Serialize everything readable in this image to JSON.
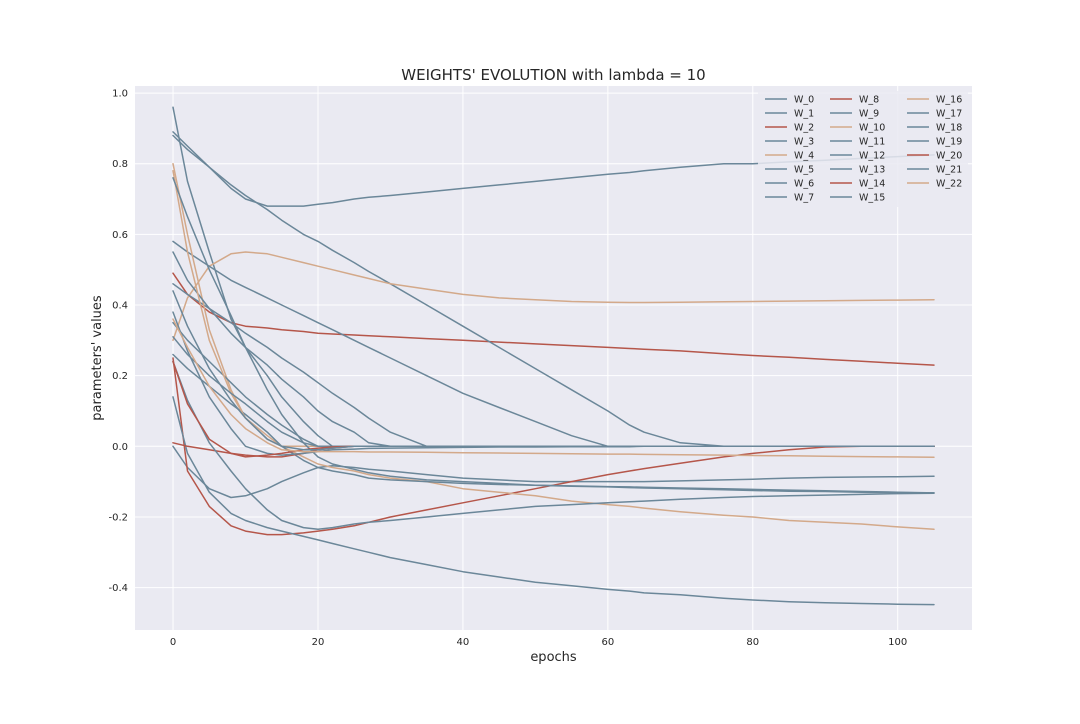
{
  "chart_data": {
    "type": "line",
    "title": "WEIGHTS' EVOLUTION with lambda = 10",
    "xlabel": "epochs",
    "ylabel": "parameters' values",
    "xlim": [
      -5.25,
      110.25
    ],
    "ylim": [
      -0.52,
      1.02
    ],
    "xticks": [
      0,
      20,
      40,
      60,
      80,
      100
    ],
    "xtick_labels": [
      "0",
      "20",
      "40",
      "60",
      "80",
      "100"
    ],
    "yticks": [
      -0.4,
      -0.2,
      0.0,
      0.2,
      0.4,
      0.6,
      0.8,
      1.0
    ],
    "ytick_labels": [
      "-0.4",
      "-0.2",
      "0.0",
      "0.2",
      "0.4",
      "0.6",
      "0.8",
      "1.0"
    ],
    "grid": true,
    "background": "#eaeaf2",
    "legend": {
      "position": "top-right",
      "columns": 3
    },
    "x": [
      0,
      2,
      5,
      8,
      10,
      13,
      15,
      18,
      20,
      22,
      25,
      27,
      30,
      35,
      40,
      45,
      50,
      55,
      60,
      63,
      65,
      70,
      76,
      80,
      85,
      90,
      95,
      100,
      105
    ],
    "series": [
      {
        "name": "W_0",
        "color": "#6b8799",
        "values": [
          0.96,
          0.75,
          0.55,
          0.36,
          0.28,
          0.2,
          0.14,
          0.07,
          0.03,
          0.0,
          0.0,
          0.0,
          0.0,
          0.0,
          0.0,
          0.0,
          0.0,
          0.0,
          0.0,
          0.0,
          0.0,
          0.0,
          0.0,
          0.0,
          0.0,
          0.0,
          0.0,
          0.0,
          0.0
        ]
      },
      {
        "name": "W_1",
        "color": "#6b8799",
        "values": [
          0.89,
          0.85,
          0.79,
          0.73,
          0.7,
          0.68,
          0.68,
          0.68,
          0.685,
          0.69,
          0.7,
          0.705,
          0.71,
          0.72,
          0.73,
          0.74,
          0.75,
          0.76,
          0.77,
          0.775,
          0.78,
          0.79,
          0.8,
          0.8,
          0.805,
          0.81,
          0.815,
          0.82,
          0.825
        ]
      },
      {
        "name": "W_2",
        "color": "#b5564a",
        "values": [
          0.49,
          0.43,
          0.38,
          0.35,
          0.34,
          0.335,
          0.33,
          0.325,
          0.32,
          0.318,
          0.315,
          0.313,
          0.31,
          0.305,
          0.3,
          0.295,
          0.29,
          0.285,
          0.28,
          0.277,
          0.275,
          0.27,
          0.262,
          0.257,
          0.252,
          0.246,
          0.241,
          0.235,
          0.23
        ]
      },
      {
        "name": "W_3",
        "color": "#6b8799",
        "values": [
          0.88,
          0.84,
          0.79,
          0.74,
          0.71,
          0.67,
          0.64,
          0.6,
          0.58,
          0.555,
          0.52,
          0.495,
          0.46,
          0.4,
          0.34,
          0.28,
          0.22,
          0.16,
          0.1,
          0.06,
          0.04,
          0.01,
          0.0,
          0.0,
          0.0,
          0.0,
          0.0,
          0.0,
          0.0
        ]
      },
      {
        "name": "W_4",
        "color": "#d3a98a",
        "values": [
          0.3,
          0.42,
          0.51,
          0.545,
          0.55,
          0.545,
          0.535,
          0.52,
          0.51,
          0.5,
          0.485,
          0.475,
          0.46,
          0.445,
          0.43,
          0.42,
          0.415,
          0.41,
          0.408,
          0.407,
          0.407,
          0.408,
          0.409,
          0.41,
          0.411,
          0.412,
          0.413,
          0.414,
          0.415
        ]
      },
      {
        "name": "W_5",
        "color": "#6b8799",
        "values": [
          0.0,
          -0.06,
          -0.12,
          -0.145,
          -0.14,
          -0.12,
          -0.1,
          -0.075,
          -0.06,
          -0.055,
          -0.06,
          -0.065,
          -0.07,
          -0.08,
          -0.09,
          -0.095,
          -0.1,
          -0.1,
          -0.1,
          -0.1,
          -0.1,
          -0.098,
          -0.095,
          -0.093,
          -0.09,
          -0.088,
          -0.087,
          -0.086,
          -0.085
        ]
      },
      {
        "name": "W_6",
        "color": "#6b8799",
        "values": [
          0.58,
          0.55,
          0.51,
          0.47,
          0.45,
          0.42,
          0.4,
          0.37,
          0.35,
          0.33,
          0.3,
          0.28,
          0.25,
          0.2,
          0.15,
          0.11,
          0.07,
          0.03,
          0.0,
          0.0,
          0.0,
          0.0,
          0.0,
          0.0,
          0.0,
          0.0,
          0.0,
          0.0,
          0.0
        ]
      },
      {
        "name": "W_7",
        "color": "#6b8799",
        "values": [
          0.46,
          0.43,
          0.39,
          0.35,
          0.32,
          0.28,
          0.25,
          0.21,
          0.18,
          0.15,
          0.11,
          0.08,
          0.04,
          0.0,
          0.0,
          0.0,
          0.0,
          0.0,
          0.0,
          0.0,
          0.0,
          0.0,
          0.0,
          0.0,
          0.0,
          0.0,
          0.0,
          0.0,
          0.0
        ]
      },
      {
        "name": "W_8",
        "color": "#b5564a",
        "values": [
          0.25,
          -0.07,
          -0.17,
          -0.225,
          -0.24,
          -0.25,
          -0.25,
          -0.245,
          -0.24,
          -0.235,
          -0.225,
          -0.215,
          -0.2,
          -0.18,
          -0.16,
          -0.14,
          -0.12,
          -0.1,
          -0.08,
          -0.07,
          -0.063,
          -0.048,
          -0.03,
          -0.02,
          -0.01,
          -0.002,
          0.0,
          0.0,
          0.0
        ]
      },
      {
        "name": "W_9",
        "color": "#6b8799",
        "values": [
          0.14,
          -0.02,
          -0.13,
          -0.19,
          -0.21,
          -0.23,
          -0.24,
          -0.255,
          -0.265,
          -0.275,
          -0.29,
          -0.3,
          -0.315,
          -0.335,
          -0.355,
          -0.37,
          -0.385,
          -0.395,
          -0.405,
          -0.41,
          -0.415,
          -0.42,
          -0.43,
          -0.435,
          -0.44,
          -0.443,
          -0.445,
          -0.447,
          -0.448
        ]
      },
      {
        "name": "W_10",
        "color": "#d3a98a",
        "values": [
          0.8,
          0.6,
          0.33,
          0.16,
          0.08,
          0.03,
          0.0,
          -0.03,
          -0.05,
          -0.06,
          -0.07,
          -0.08,
          -0.09,
          -0.1,
          -0.12,
          -0.13,
          -0.14,
          -0.155,
          -0.165,
          -0.17,
          -0.175,
          -0.185,
          -0.195,
          -0.2,
          -0.21,
          -0.215,
          -0.22,
          -0.228,
          -0.235
        ]
      },
      {
        "name": "W_11",
        "color": "#6b8799",
        "values": [
          0.35,
          0.3,
          0.24,
          0.18,
          0.14,
          0.09,
          0.06,
          0.02,
          0.0,
          0.0,
          0.0,
          0.0,
          0.0,
          0.0,
          0.0,
          0.0,
          0.0,
          0.0,
          0.0,
          0.0,
          0.0,
          0.0,
          0.0,
          0.0,
          0.0,
          0.0,
          0.0,
          0.0,
          0.0
        ]
      },
      {
        "name": "W_12",
        "color": "#6b8799",
        "values": [
          0.55,
          0.47,
          0.39,
          0.32,
          0.28,
          0.23,
          0.19,
          0.14,
          0.1,
          0.07,
          0.04,
          0.01,
          0.0,
          0.0,
          0.0,
          0.0,
          0.0,
          0.0,
          0.0,
          0.0,
          0.0,
          0.0,
          0.0,
          0.0,
          0.0,
          0.0,
          0.0,
          0.0,
          0.0
        ]
      },
      {
        "name": "W_13",
        "color": "#6b8799",
        "values": [
          0.26,
          0.22,
          0.17,
          0.12,
          0.09,
          0.04,
          0.0,
          -0.04,
          -0.06,
          -0.07,
          -0.08,
          -0.09,
          -0.095,
          -0.1,
          -0.105,
          -0.108,
          -0.11,
          -0.112,
          -0.114,
          -0.115,
          -0.116,
          -0.118,
          -0.12,
          -0.122,
          -0.124,
          -0.126,
          -0.128,
          -0.13,
          -0.132
        ]
      },
      {
        "name": "W_14",
        "color": "#b5564a",
        "values": [
          0.01,
          0.0,
          -0.01,
          -0.02,
          -0.025,
          -0.03,
          -0.03,
          -0.02,
          -0.01,
          -0.005,
          0.0,
          0.0,
          0.0,
          0.0,
          0.0,
          0.0,
          0.0,
          0.0,
          0.0,
          0.0,
          0.0,
          0.0,
          0.0,
          0.0,
          0.0,
          0.0,
          0.0,
          0.0,
          0.0
        ]
      },
      {
        "name": "W_15",
        "color": "#6b8799",
        "values": [
          0.24,
          0.13,
          0.01,
          -0.07,
          -0.12,
          -0.18,
          -0.21,
          -0.23,
          -0.235,
          -0.23,
          -0.22,
          -0.215,
          -0.21,
          -0.2,
          -0.19,
          -0.18,
          -0.17,
          -0.165,
          -0.16,
          -0.157,
          -0.155,
          -0.15,
          -0.145,
          -0.142,
          -0.14,
          -0.138,
          -0.136,
          -0.134,
          -0.133
        ]
      },
      {
        "name": "W_16",
        "color": "#d3a98a",
        "values": [
          0.78,
          0.55,
          0.3,
          0.15,
          0.08,
          0.02,
          0.0,
          0.0,
          0.0,
          0.0,
          0.0,
          0.0,
          0.0,
          0.0,
          0.0,
          0.0,
          0.0,
          0.0,
          0.0,
          0.0,
          0.0,
          0.0,
          0.0,
          0.0,
          0.0,
          0.0,
          0.0,
          0.0,
          0.0
        ]
      },
      {
        "name": "W_17",
        "color": "#6b8799",
        "values": [
          0.38,
          0.27,
          0.14,
          0.05,
          0.0,
          -0.02,
          -0.025,
          -0.02,
          -0.015,
          -0.01,
          -0.008,
          -0.006,
          -0.005,
          -0.004,
          -0.003,
          -0.002,
          -0.002,
          -0.001,
          -0.001,
          -0.001,
          0.0,
          0.0,
          0.0,
          0.0,
          0.0,
          0.0,
          0.0,
          0.0,
          0.0
        ]
      },
      {
        "name": "W_18",
        "color": "#6b8799",
        "values": [
          0.76,
          0.65,
          0.5,
          0.37,
          0.28,
          0.16,
          0.09,
          0.01,
          -0.03,
          -0.05,
          -0.065,
          -0.075,
          -0.085,
          -0.095,
          -0.1,
          -0.105,
          -0.11,
          -0.113,
          -0.115,
          -0.117,
          -0.118,
          -0.12,
          -0.123,
          -0.125,
          -0.127,
          -0.128,
          -0.13,
          -0.131,
          -0.132
        ]
      },
      {
        "name": "W_19",
        "color": "#6b8799",
        "values": [
          0.31,
          0.26,
          0.2,
          0.15,
          0.12,
          0.07,
          0.04,
          0.01,
          0.0,
          0.0,
          0.0,
          0.0,
          0.0,
          0.0,
          0.0,
          0.0,
          0.0,
          0.0,
          0.0,
          0.0,
          0.0,
          0.0,
          0.0,
          0.0,
          0.0,
          0.0,
          0.0,
          0.0,
          0.0
        ]
      },
      {
        "name": "W_20",
        "color": "#b5564a",
        "values": [
          0.24,
          0.12,
          0.02,
          -0.02,
          -0.03,
          -0.025,
          -0.02,
          -0.01,
          -0.005,
          -0.002,
          0.0,
          0.0,
          0.0,
          0.0,
          0.0,
          0.0,
          0.0,
          0.0,
          0.0,
          0.0,
          0.0,
          0.0,
          0.0,
          0.0,
          0.0,
          0.0,
          0.0,
          0.0,
          0.0
        ]
      },
      {
        "name": "W_21",
        "color": "#6b8799",
        "values": [
          0.44,
          0.34,
          0.22,
          0.13,
          0.08,
          0.02,
          0.0,
          -0.01,
          -0.01,
          -0.005,
          0.0,
          0.0,
          0.0,
          0.0,
          0.0,
          0.0,
          0.0,
          0.0,
          0.0,
          0.0,
          0.0,
          0.0,
          0.0,
          0.0,
          0.0,
          0.0,
          0.0,
          0.0,
          0.0
        ]
      },
      {
        "name": "W_22",
        "color": "#d3a98a",
        "values": [
          0.36,
          0.28,
          0.17,
          0.09,
          0.05,
          0.01,
          -0.01,
          -0.015,
          -0.015,
          -0.015,
          -0.015,
          -0.016,
          -0.016,
          -0.017,
          -0.018,
          -0.019,
          -0.02,
          -0.021,
          -0.022,
          -0.022,
          -0.023,
          -0.024,
          -0.025,
          -0.026,
          -0.027,
          -0.028,
          -0.029,
          -0.03,
          -0.031
        ]
      }
    ]
  }
}
